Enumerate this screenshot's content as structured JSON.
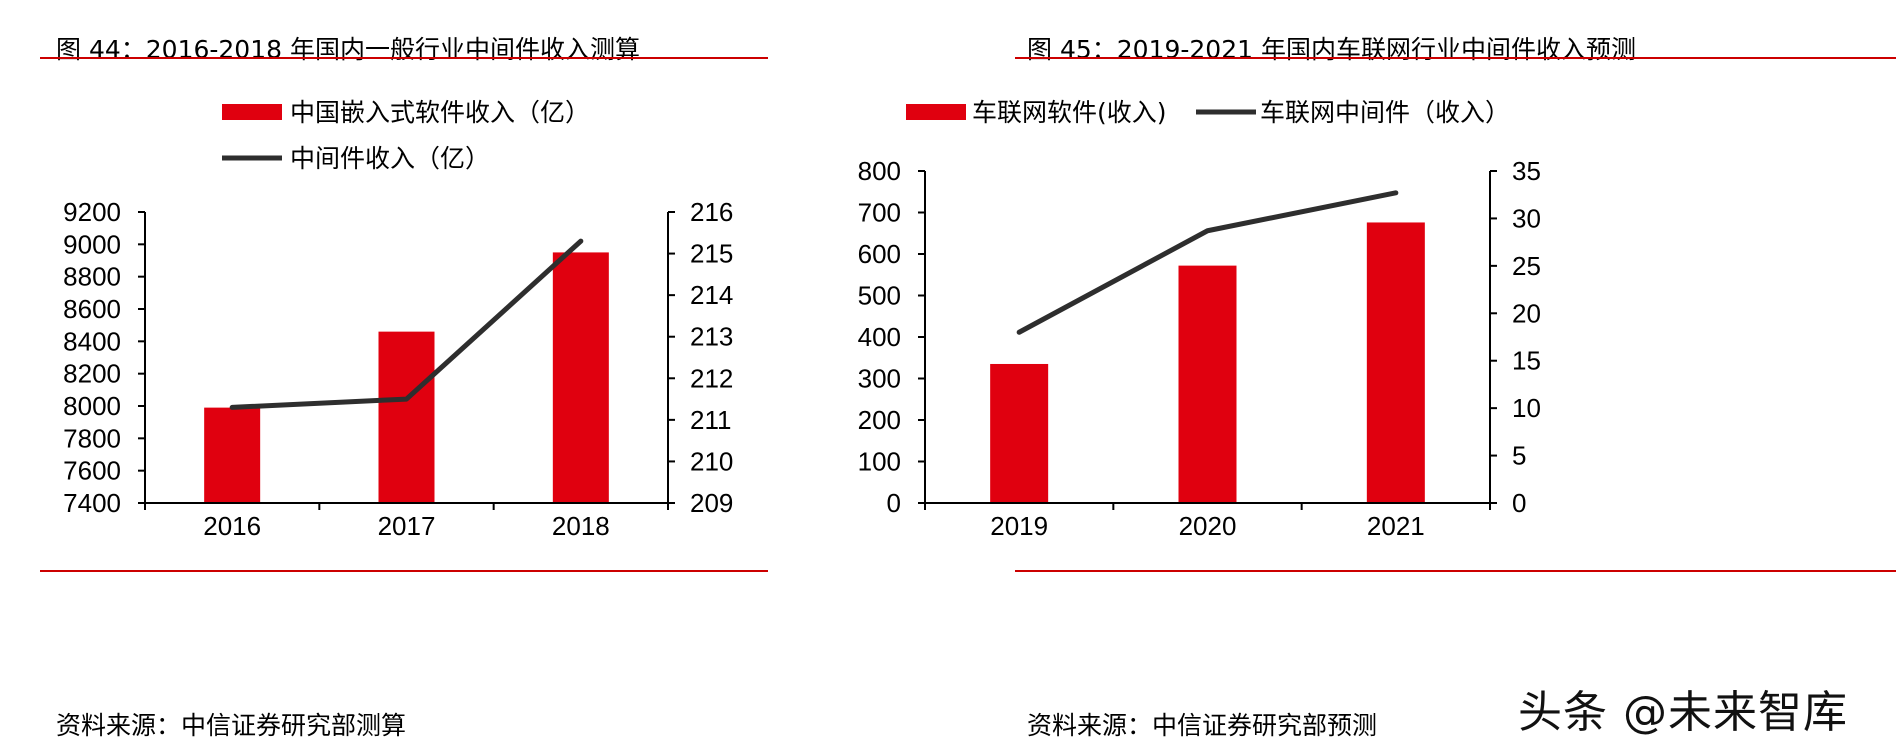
{
  "watermark": "头条 @未来智库",
  "colors": {
    "bar": "#e0000f",
    "line": "#2e2e2e",
    "rule": "#cc0000",
    "axis": "#000000"
  },
  "left": {
    "title": "图 44：2016-2018 年国内一般行业中间件收入测算",
    "source": "资料来源：中信证券研究部测算"
  },
  "right": {
    "title": "图 45：2019-2021 年国内车联网行业中间件收入预测",
    "source": "资料来源：中信证券研究部预测"
  },
  "chart_data": [
    {
      "type": "bar",
      "categories": [
        "2016",
        "2017",
        "2018"
      ],
      "series": [
        {
          "name": "中国嵌入式软件收入（亿）",
          "type": "bar",
          "axis": "left",
          "values": [
            7990,
            8460,
            8950
          ]
        },
        {
          "name": "中间件收入（亿）",
          "type": "line",
          "axis": "right",
          "values": [
            211.3,
            211.5,
            215.3
          ]
        }
      ],
      "left_axis": {
        "min": 7400,
        "max": 9200,
        "ticks": [
          "7400",
          "7600",
          "7800",
          "8000",
          "8200",
          "8400",
          "8600",
          "8800",
          "9000",
          "9200"
        ]
      },
      "right_axis": {
        "min": 209,
        "max": 216,
        "ticks": [
          "209",
          "210",
          "211",
          "212",
          "213",
          "214",
          "215",
          "216"
        ]
      },
      "legend_position": "top-center-stacked"
    },
    {
      "type": "bar",
      "categories": [
        "2019",
        "2020",
        "2021"
      ],
      "series": [
        {
          "name": "车联网软件(收入)",
          "type": "bar",
          "axis": "left",
          "values": [
            335,
            572,
            676
          ]
        },
        {
          "name": "车联网中间件（收入）",
          "type": "line",
          "axis": "right",
          "values": [
            18,
            28.7,
            32.7
          ]
        }
      ],
      "left_axis": {
        "min": 0,
        "max": 800,
        "ticks": [
          "0",
          "100",
          "200",
          "300",
          "400",
          "500",
          "600",
          "700",
          "800"
        ]
      },
      "right_axis": {
        "min": 0,
        "max": 35,
        "ticks": [
          "0",
          "5",
          "10",
          "15",
          "20",
          "25",
          "30",
          "35"
        ]
      },
      "legend_position": "top-center-inline"
    }
  ]
}
